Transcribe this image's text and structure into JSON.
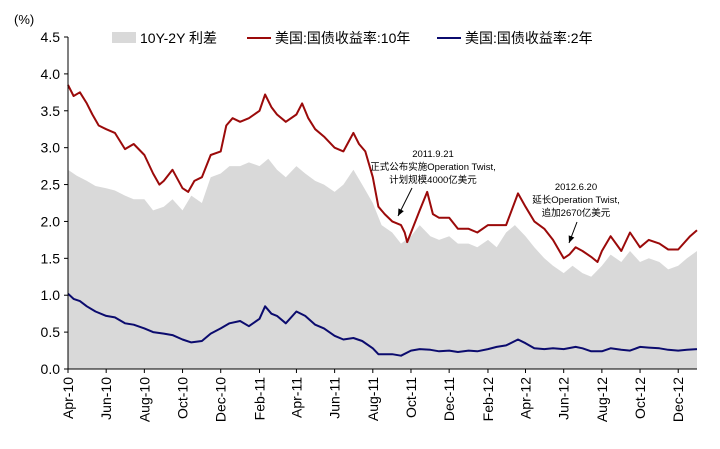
{
  "chart_data": {
    "type": "line",
    "unit_label": "(%)",
    "xlabel": "",
    "ylabel": "",
    "ylim": [
      0.0,
      4.5
    ],
    "y_ticks": [
      "0.0",
      "0.5",
      "1.0",
      "1.5",
      "2.0",
      "2.5",
      "3.0",
      "3.5",
      "4.0",
      "4.5"
    ],
    "x_ticks": [
      "Apr-10",
      "Jun-10",
      "Aug-10",
      "Oct-10",
      "Dec-10",
      "Feb-11",
      "Apr-11",
      "Jun-11",
      "Aug-11",
      "Oct-11",
      "Dec-11",
      "Feb-12",
      "Apr-12",
      "Jun-12",
      "Aug-12",
      "Oct-12",
      "Dec-12"
    ],
    "x_tick_dates": [
      "2010-04-01",
      "2010-06-01",
      "2010-08-01",
      "2010-10-01",
      "2010-12-01",
      "2011-02-01",
      "2011-04-01",
      "2011-06-01",
      "2011-08-01",
      "2011-10-01",
      "2011-12-01",
      "2012-02-01",
      "2012-04-01",
      "2012-06-01",
      "2012-08-01",
      "2012-10-01",
      "2012-12-01"
    ],
    "x_range": [
      "2010-04-01",
      "2012-12-31"
    ],
    "grid": false,
    "legend_position": "top",
    "colors": {
      "spread": "#d9d9d9",
      "ten_year": "#9b0a0a",
      "two_year": "#0b0b6e"
    },
    "series": [
      {
        "name": "10Y-2Y 利差",
        "kind": "area",
        "points": [
          [
            "2010-04-01",
            2.7
          ],
          [
            "2010-04-15",
            2.62
          ],
          [
            "2010-05-01",
            2.55
          ],
          [
            "2010-05-15",
            2.48
          ],
          [
            "2010-06-01",
            2.45
          ],
          [
            "2010-06-15",
            2.42
          ],
          [
            "2010-07-01",
            2.35
          ],
          [
            "2010-07-15",
            2.3
          ],
          [
            "2010-08-01",
            2.3
          ],
          [
            "2010-08-15",
            2.15
          ],
          [
            "2010-09-01",
            2.2
          ],
          [
            "2010-09-15",
            2.3
          ],
          [
            "2010-10-01",
            2.15
          ],
          [
            "2010-10-15",
            2.35
          ],
          [
            "2010-11-01",
            2.25
          ],
          [
            "2010-11-15",
            2.6
          ],
          [
            "2010-12-01",
            2.65
          ],
          [
            "2010-12-15",
            2.75
          ],
          [
            "2011-01-01",
            2.75
          ],
          [
            "2011-01-15",
            2.8
          ],
          [
            "2011-02-01",
            2.75
          ],
          [
            "2011-02-15",
            2.85
          ],
          [
            "2011-03-01",
            2.7
          ],
          [
            "2011-03-15",
            2.6
          ],
          [
            "2011-04-01",
            2.75
          ],
          [
            "2011-04-15",
            2.65
          ],
          [
            "2011-05-01",
            2.55
          ],
          [
            "2011-05-15",
            2.5
          ],
          [
            "2011-06-01",
            2.4
          ],
          [
            "2011-06-15",
            2.5
          ],
          [
            "2011-07-01",
            2.7
          ],
          [
            "2011-07-15",
            2.5
          ],
          [
            "2011-08-01",
            2.25
          ],
          [
            "2011-08-15",
            1.95
          ],
          [
            "2011-09-01",
            1.85
          ],
          [
            "2011-09-15",
            1.7
          ],
          [
            "2011-10-01",
            1.8
          ],
          [
            "2011-10-15",
            1.95
          ],
          [
            "2011-11-01",
            1.8
          ],
          [
            "2011-11-15",
            1.75
          ],
          [
            "2011-12-01",
            1.8
          ],
          [
            "2011-12-15",
            1.7
          ],
          [
            "2012-01-01",
            1.7
          ],
          [
            "2012-01-15",
            1.65
          ],
          [
            "2012-02-01",
            1.75
          ],
          [
            "2012-02-15",
            1.65
          ],
          [
            "2012-03-01",
            1.85
          ],
          [
            "2012-03-15",
            1.95
          ],
          [
            "2012-04-01",
            1.8
          ],
          [
            "2012-04-15",
            1.65
          ],
          [
            "2012-05-01",
            1.5
          ],
          [
            "2012-05-15",
            1.4
          ],
          [
            "2012-06-01",
            1.3
          ],
          [
            "2012-06-15",
            1.4
          ],
          [
            "2012-07-01",
            1.3
          ],
          [
            "2012-07-15",
            1.25
          ],
          [
            "2012-08-01",
            1.4
          ],
          [
            "2012-08-15",
            1.55
          ],
          [
            "2012-09-01",
            1.45
          ],
          [
            "2012-09-15",
            1.6
          ],
          [
            "2012-10-01",
            1.45
          ],
          [
            "2012-10-15",
            1.5
          ],
          [
            "2012-11-01",
            1.45
          ],
          [
            "2012-11-15",
            1.35
          ],
          [
            "2012-12-01",
            1.4
          ],
          [
            "2012-12-15",
            1.5
          ],
          [
            "2012-12-31",
            1.6
          ]
        ]
      },
      {
        "name": "美国:国债收益率:10年",
        "kind": "line",
        "points": [
          [
            "2010-04-01",
            3.85
          ],
          [
            "2010-04-10",
            3.7
          ],
          [
            "2010-04-20",
            3.75
          ],
          [
            "2010-05-01",
            3.6
          ],
          [
            "2010-05-10",
            3.45
          ],
          [
            "2010-05-20",
            3.3
          ],
          [
            "2010-06-01",
            3.25
          ],
          [
            "2010-06-15",
            3.2
          ],
          [
            "2010-07-01",
            2.98
          ],
          [
            "2010-07-15",
            3.05
          ],
          [
            "2010-08-01",
            2.9
          ],
          [
            "2010-08-15",
            2.65
          ],
          [
            "2010-08-25",
            2.5
          ],
          [
            "2010-09-01",
            2.55
          ],
          [
            "2010-09-15",
            2.7
          ],
          [
            "2010-10-01",
            2.45
          ],
          [
            "2010-10-10",
            2.4
          ],
          [
            "2010-10-20",
            2.55
          ],
          [
            "2010-11-01",
            2.6
          ],
          [
            "2010-11-15",
            2.9
          ],
          [
            "2010-12-01",
            2.95
          ],
          [
            "2010-12-10",
            3.3
          ],
          [
            "2010-12-20",
            3.4
          ],
          [
            "2011-01-01",
            3.35
          ],
          [
            "2011-01-15",
            3.4
          ],
          [
            "2011-02-01",
            3.5
          ],
          [
            "2011-02-10",
            3.72
          ],
          [
            "2011-02-20",
            3.55
          ],
          [
            "2011-03-01",
            3.45
          ],
          [
            "2011-03-15",
            3.35
          ],
          [
            "2011-04-01",
            3.45
          ],
          [
            "2011-04-10",
            3.6
          ],
          [
            "2011-04-20",
            3.4
          ],
          [
            "2011-05-01",
            3.25
          ],
          [
            "2011-05-15",
            3.15
          ],
          [
            "2011-06-01",
            3.0
          ],
          [
            "2011-06-15",
            2.95
          ],
          [
            "2011-07-01",
            3.2
          ],
          [
            "2011-07-10",
            3.05
          ],
          [
            "2011-07-20",
            2.95
          ],
          [
            "2011-08-01",
            2.6
          ],
          [
            "2011-08-10",
            2.2
          ],
          [
            "2011-08-20",
            2.1
          ],
          [
            "2011-09-01",
            2.0
          ],
          [
            "2011-09-15",
            1.95
          ],
          [
            "2011-09-21",
            1.85
          ],
          [
            "2011-09-25",
            1.72
          ],
          [
            "2011-10-01",
            1.85
          ],
          [
            "2011-10-15",
            2.15
          ],
          [
            "2011-10-27",
            2.4
          ],
          [
            "2011-11-05",
            2.1
          ],
          [
            "2011-11-15",
            2.05
          ],
          [
            "2011-12-01",
            2.05
          ],
          [
            "2011-12-15",
            1.9
          ],
          [
            "2012-01-01",
            1.9
          ],
          [
            "2012-01-15",
            1.85
          ],
          [
            "2012-02-01",
            1.95
          ],
          [
            "2012-02-15",
            1.95
          ],
          [
            "2012-03-01",
            1.95
          ],
          [
            "2012-03-20",
            2.38
          ],
          [
            "2012-04-01",
            2.2
          ],
          [
            "2012-04-15",
            2.0
          ],
          [
            "2012-05-01",
            1.9
          ],
          [
            "2012-05-15",
            1.75
          ],
          [
            "2012-06-01",
            1.5
          ],
          [
            "2012-06-10",
            1.55
          ],
          [
            "2012-06-20",
            1.65
          ],
          [
            "2012-07-01",
            1.6
          ],
          [
            "2012-07-15",
            1.52
          ],
          [
            "2012-07-25",
            1.45
          ],
          [
            "2012-08-01",
            1.6
          ],
          [
            "2012-08-15",
            1.8
          ],
          [
            "2012-09-01",
            1.6
          ],
          [
            "2012-09-15",
            1.85
          ],
          [
            "2012-10-01",
            1.65
          ],
          [
            "2012-10-15",
            1.75
          ],
          [
            "2012-11-01",
            1.7
          ],
          [
            "2012-11-15",
            1.62
          ],
          [
            "2012-12-01",
            1.62
          ],
          [
            "2012-12-20",
            1.8
          ],
          [
            "2012-12-31",
            1.88
          ]
        ]
      },
      {
        "name": "美国:国债收益率:2年",
        "kind": "line",
        "points": [
          [
            "2010-04-01",
            1.02
          ],
          [
            "2010-04-10",
            0.95
          ],
          [
            "2010-04-20",
            0.92
          ],
          [
            "2010-05-01",
            0.85
          ],
          [
            "2010-05-15",
            0.78
          ],
          [
            "2010-06-01",
            0.72
          ],
          [
            "2010-06-15",
            0.7
          ],
          [
            "2010-07-01",
            0.62
          ],
          [
            "2010-07-15",
            0.6
          ],
          [
            "2010-08-01",
            0.55
          ],
          [
            "2010-08-15",
            0.5
          ],
          [
            "2010-09-01",
            0.48
          ],
          [
            "2010-09-15",
            0.46
          ],
          [
            "2010-10-01",
            0.4
          ],
          [
            "2010-10-15",
            0.36
          ],
          [
            "2010-11-01",
            0.38
          ],
          [
            "2010-11-15",
            0.48
          ],
          [
            "2010-12-01",
            0.55
          ],
          [
            "2010-12-15",
            0.62
          ],
          [
            "2011-01-01",
            0.65
          ],
          [
            "2011-01-15",
            0.58
          ],
          [
            "2011-02-01",
            0.68
          ],
          [
            "2011-02-10",
            0.85
          ],
          [
            "2011-02-20",
            0.75
          ],
          [
            "2011-03-01",
            0.72
          ],
          [
            "2011-03-15",
            0.62
          ],
          [
            "2011-04-01",
            0.78
          ],
          [
            "2011-04-15",
            0.72
          ],
          [
            "2011-05-01",
            0.6
          ],
          [
            "2011-05-15",
            0.55
          ],
          [
            "2011-06-01",
            0.45
          ],
          [
            "2011-06-15",
            0.4
          ],
          [
            "2011-07-01",
            0.42
          ],
          [
            "2011-07-15",
            0.38
          ],
          [
            "2011-08-01",
            0.28
          ],
          [
            "2011-08-10",
            0.2
          ],
          [
            "2011-09-01",
            0.2
          ],
          [
            "2011-09-15",
            0.18
          ],
          [
            "2011-10-01",
            0.25
          ],
          [
            "2011-10-15",
            0.27
          ],
          [
            "2011-11-01",
            0.26
          ],
          [
            "2011-11-15",
            0.24
          ],
          [
            "2011-12-01",
            0.25
          ],
          [
            "2011-12-15",
            0.23
          ],
          [
            "2012-01-01",
            0.25
          ],
          [
            "2012-01-15",
            0.24
          ],
          [
            "2012-02-01",
            0.27
          ],
          [
            "2012-02-15",
            0.3
          ],
          [
            "2012-03-01",
            0.32
          ],
          [
            "2012-03-20",
            0.4
          ],
          [
            "2012-04-01",
            0.35
          ],
          [
            "2012-04-15",
            0.28
          ],
          [
            "2012-05-01",
            0.27
          ],
          [
            "2012-05-15",
            0.28
          ],
          [
            "2012-06-01",
            0.27
          ],
          [
            "2012-06-20",
            0.3
          ],
          [
            "2012-07-01",
            0.28
          ],
          [
            "2012-07-15",
            0.24
          ],
          [
            "2012-08-01",
            0.24
          ],
          [
            "2012-08-15",
            0.28
          ],
          [
            "2012-09-01",
            0.26
          ],
          [
            "2012-09-15",
            0.25
          ],
          [
            "2012-10-01",
            0.3
          ],
          [
            "2012-10-15",
            0.29
          ],
          [
            "2012-11-01",
            0.28
          ],
          [
            "2012-11-15",
            0.26
          ],
          [
            "2012-12-01",
            0.25
          ],
          [
            "2012-12-15",
            0.26
          ],
          [
            "2012-12-31",
            0.27
          ]
        ]
      }
    ],
    "annotations": [
      {
        "date": "2011-09-21",
        "value": 1.85,
        "lines": [
          "2011.9.21",
          "正式公布实施Operation Twist,",
          "计划规模4000亿美元"
        ]
      },
      {
        "date": "2012-06-20",
        "value": 1.62,
        "lines": [
          "2012.6.20",
          "延长Operation Twist,",
          "追加2670亿美元"
        ]
      }
    ]
  }
}
